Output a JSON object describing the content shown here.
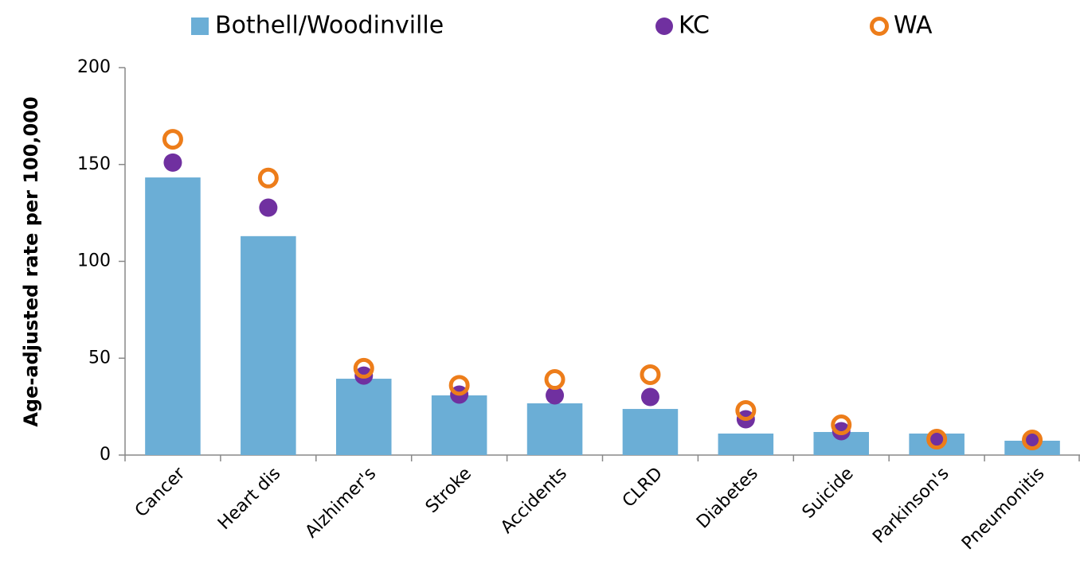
{
  "chart_data": {
    "type": "bar",
    "categories": [
      "Cancer",
      "Heart dis",
      "Alzhimer's",
      "Stroke",
      "Accidents",
      "CLRD",
      "Diabetes",
      "Suicide",
      "Parkinson's",
      "Pneumonitis"
    ],
    "y_label": "Age-adjusted rate per 100,000",
    "ylim": [
      0,
      200
    ],
    "yticks": [
      0,
      50,
      100,
      150,
      200
    ],
    "grid": false,
    "legend": "top",
    "series": [
      {
        "name": "Bothell/Woodinville",
        "type": "bar",
        "color": "#6baed6",
        "values": [
          143.3,
          113,
          39.4,
          30.8,
          26.7,
          23.8,
          11.1,
          11.9,
          11.1,
          7.4
        ]
      },
      {
        "name": "KC",
        "type": "scatter",
        "color": "#7030a0",
        "hollow": false,
        "values": [
          151,
          127.7,
          41,
          31.2,
          30.8,
          30,
          18.5,
          12.3,
          8.2,
          7.8
        ]
      },
      {
        "name": "WA",
        "type": "scatter",
        "color": "#ed7d1a",
        "hollow": true,
        "values": [
          163,
          143,
          44.8,
          36,
          39,
          41.5,
          23,
          15.6,
          8.2,
          7.8
        ]
      }
    ]
  }
}
